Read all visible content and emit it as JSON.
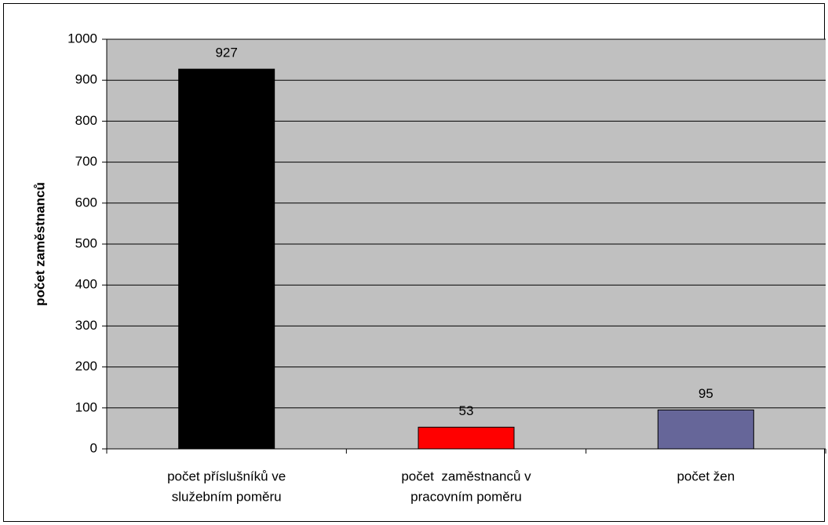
{
  "chart_data": {
    "type": "bar",
    "ylabel": "počet zaměstnanců",
    "categories": [
      [
        "počet příslušníků ve",
        "služebním poměru"
      ],
      [
        "počet  zaměstnanců v",
        "pracovním poměru"
      ],
      [
        "počet žen"
      ]
    ],
    "values": [
      927,
      53,
      95
    ],
    "colors": [
      "#000000",
      "#ff0000",
      "#666699"
    ],
    "ylim": [
      0,
      1000
    ],
    "yticks": [
      0,
      100,
      200,
      300,
      400,
      500,
      600,
      700,
      800,
      900,
      1000
    ],
    "grid": true,
    "data_labels": true
  }
}
